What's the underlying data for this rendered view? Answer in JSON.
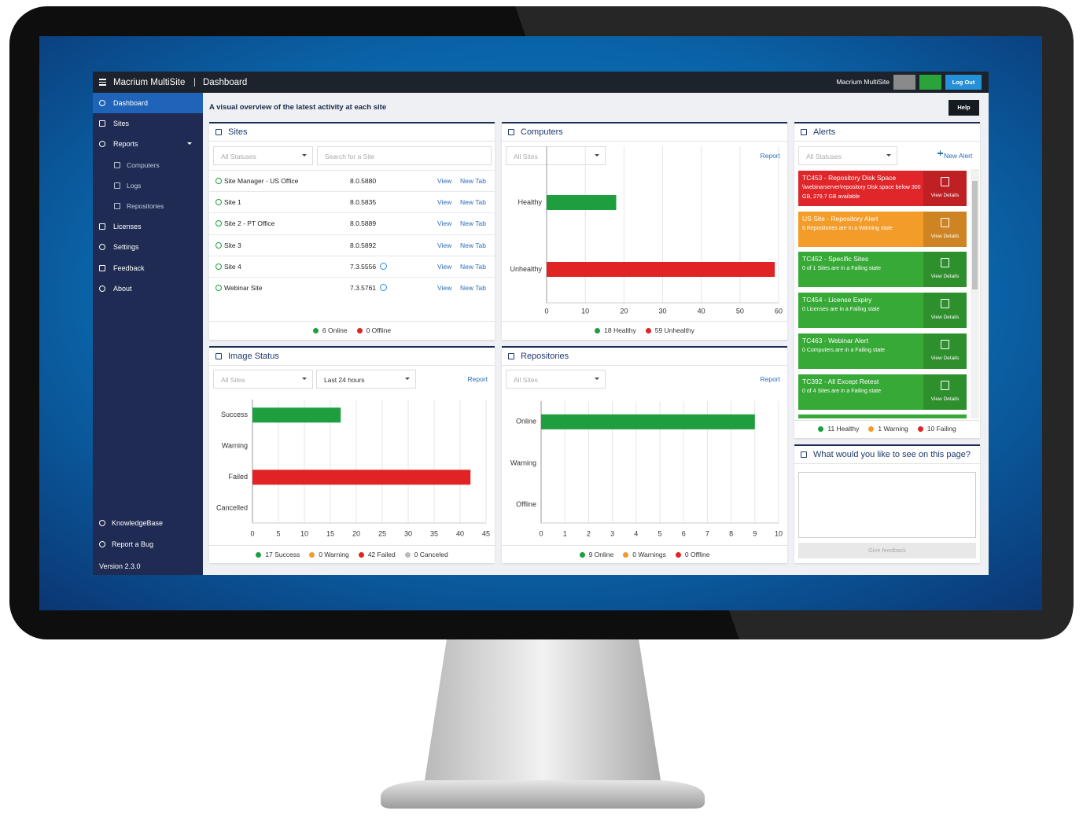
{
  "header": {
    "brand": "Macrium MultiSite",
    "page": "Dashboard",
    "user": "Macrium MultiSite",
    "logout": "Log Out"
  },
  "sidebar": {
    "items": [
      {
        "label": "Dashboard"
      },
      {
        "label": "Sites"
      },
      {
        "label": "Reports",
        "children": [
          "Computers",
          "Logs",
          "Repositories"
        ]
      },
      {
        "label": "Licenses"
      },
      {
        "label": "Settings"
      },
      {
        "label": "Feedback"
      },
      {
        "label": "About"
      }
    ],
    "active": 0,
    "bottom": [
      "KnowledgeBase",
      "Report a Bug"
    ],
    "version": "Version 2.3.0"
  },
  "intro": "A visual overview of the latest activity at each site",
  "help": "Help",
  "sites": {
    "title": "Sites",
    "filter": "All Statuses",
    "search": "Search for a Site",
    "view": "View",
    "new_tab": "New Tab",
    "rows": [
      {
        "name": "Site Manager - US Office",
        "version": "8.0.5880"
      },
      {
        "name": "Site 1",
        "version": "8.0.5835"
      },
      {
        "name": "Site 2 - PT Office",
        "version": "8.0.5889"
      },
      {
        "name": "Site 3",
        "version": "8.0.5892"
      },
      {
        "name": "Site 4",
        "version": "7.3.5556",
        "outdated": true
      },
      {
        "name": "Webinar Site",
        "version": "7.3.5761",
        "outdated": true
      }
    ],
    "legend": [
      {
        "label": "6 Online",
        "color": "#1e9e3e"
      },
      {
        "label": "0 Offline",
        "color": "#e02424"
      }
    ]
  },
  "computers": {
    "title": "Computers",
    "filter": "All Sites",
    "report": "Report",
    "chart": {
      "type": "bar",
      "categories": [
        "Healthy",
        "Unhealthy"
      ],
      "values": [
        18,
        59
      ],
      "colors": [
        "#1e9e3e",
        "#e02424"
      ],
      "xlim": [
        0,
        60
      ],
      "xticks": [
        0,
        10,
        20,
        30,
        40,
        50,
        60
      ],
      "grid": true
    },
    "legend": [
      {
        "label": "18 Healthy",
        "color": "#1e9e3e"
      },
      {
        "label": "59 Unhealthy",
        "color": "#e02424"
      }
    ]
  },
  "alerts": {
    "title": "Alerts",
    "filter": "All Statuses",
    "new": "New Alert",
    "details": "View Details",
    "items": [
      {
        "title": "TC453 - Repository Disk Space",
        "text": "\\\\webinarserver\\repository Disk space below 300 GB, 279.7 GB available",
        "color": "#e0262a"
      },
      {
        "title": "US Site - Repository Alert",
        "text": "6 Repositories are in a Warning state",
        "color": "#f39c29"
      },
      {
        "title": "TC452 - Specific Sites",
        "text": "0 of 1 Sites are in a Failing state",
        "color": "#37a936"
      },
      {
        "title": "TC454 - License Expiry",
        "text": "0 Licenses are in a Failing state",
        "color": "#37a936"
      },
      {
        "title": "TC463 - Webinar Alert",
        "text": "0 Computers are in a Failing state",
        "color": "#37a936"
      },
      {
        "title": "TC392 - All Except Retest",
        "text": "0 of 4 Sites are in a Failing state",
        "color": "#37a936"
      }
    ],
    "legend": [
      {
        "label": "11 Healthy",
        "color": "#1e9e3e"
      },
      {
        "label": "1 Warning",
        "color": "#f39a2b"
      },
      {
        "label": "10 Failing",
        "color": "#e02424"
      }
    ]
  },
  "image_status": {
    "title": "Image Status",
    "filters": [
      "All Sites",
      "Last 24 hours"
    ],
    "report": "Report",
    "chart": {
      "type": "bar",
      "categories": [
        "Success",
        "Warning",
        "Failed",
        "Cancelled"
      ],
      "values": [
        17,
        0,
        42,
        0
      ],
      "colors": [
        "#1e9e3e",
        "#f39a2b",
        "#e02424",
        "#bbbbbb"
      ],
      "xlim": [
        0,
        45
      ],
      "xticks": [
        0,
        5,
        10,
        15,
        20,
        25,
        30,
        35,
        40,
        45
      ],
      "grid": true
    },
    "legend": [
      {
        "label": "17 Success",
        "color": "#1e9e3e"
      },
      {
        "label": "0 Warning",
        "color": "#f39a2b"
      },
      {
        "label": "42 Failed",
        "color": "#e02424"
      },
      {
        "label": "0 Canceled",
        "color": "#bbbbbb"
      }
    ]
  },
  "repositories": {
    "title": "Repositories",
    "filter": "All Sites",
    "report": "Report",
    "chart": {
      "type": "bar",
      "categories": [
        "Online",
        "Warning",
        "Offline"
      ],
      "values": [
        9,
        0,
        0
      ],
      "colors": [
        "#1e9e3e",
        "#f39a2b",
        "#e02424"
      ],
      "xlim": [
        0,
        10
      ],
      "xticks": [
        0,
        1,
        2,
        3,
        4,
        5,
        6,
        7,
        8,
        9,
        10
      ],
      "grid": true
    },
    "legend": [
      {
        "label": "9 Online",
        "color": "#1e9e3e"
      },
      {
        "label": "0 Warnings",
        "color": "#f39a2b"
      },
      {
        "label": "0 Offline",
        "color": "#e02424"
      }
    ]
  },
  "feedback": {
    "title": "What would you like to see on this page?",
    "button": "Give feedback"
  }
}
